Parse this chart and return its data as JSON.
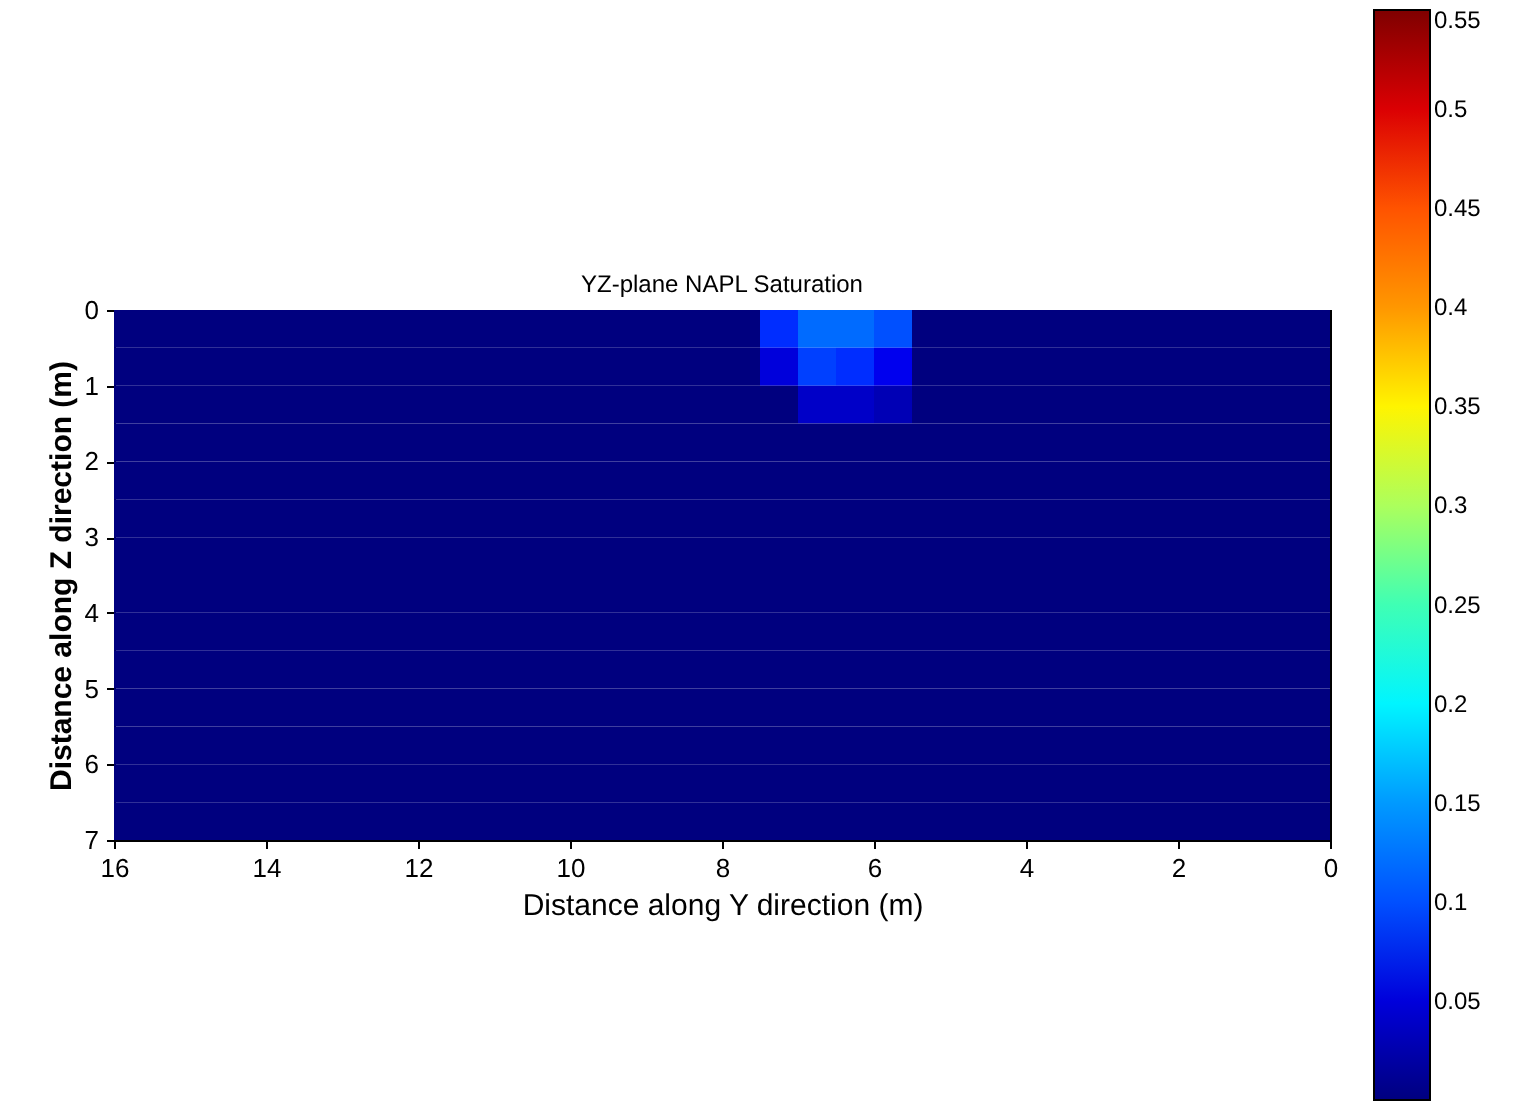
{
  "chart_data": {
    "type": "heatmap",
    "title": "YZ-plane NAPL Saturation",
    "xlabel": "Distance along Y direction (m)",
    "ylabel": "Distance along Z direction (m)",
    "xlim": [
      16,
      0
    ],
    "xticks": [
      16,
      14,
      12,
      10,
      8,
      6,
      4,
      2,
      0
    ],
    "ylim": [
      7,
      0
    ],
    "yticks": [
      0,
      1,
      2,
      3,
      4,
      5,
      6,
      7
    ],
    "clim": [
      0,
      0.55
    ],
    "cticks": [
      0.05,
      0.1,
      0.15,
      0.2,
      0.25,
      0.3,
      0.35,
      0.4,
      0.45,
      0.5,
      0.55
    ],
    "cells": [
      [
        0,
        0,
        0,
        0,
        0,
        0,
        0,
        0,
        0,
        0,
        0,
        0,
        0,
        0,
        0,
        0,
        0,
        0.08,
        0.12,
        0.12,
        0.1,
        0,
        0,
        0,
        0,
        0,
        0,
        0,
        0,
        0,
        0,
        0
      ],
      [
        0,
        0,
        0,
        0,
        0,
        0,
        0,
        0,
        0,
        0,
        0,
        0,
        0,
        0,
        0,
        0,
        0,
        0.05,
        0.09,
        0.08,
        0.06,
        0,
        0,
        0,
        0,
        0,
        0,
        0,
        0,
        0,
        0,
        0
      ],
      [
        0,
        0,
        0,
        0,
        0,
        0,
        0,
        0,
        0,
        0,
        0,
        0,
        0,
        0,
        0,
        0,
        0,
        0,
        0.04,
        0.04,
        0.03,
        0,
        0,
        0,
        0,
        0,
        0,
        0,
        0,
        0,
        0,
        0
      ],
      [
        0,
        0,
        0,
        0,
        0,
        0,
        0,
        0,
        0,
        0,
        0,
        0,
        0,
        0,
        0,
        0,
        0,
        0,
        0,
        0,
        0,
        0,
        0,
        0,
        0,
        0,
        0,
        0,
        0,
        0,
        0,
        0
      ],
      [
        0,
        0,
        0,
        0,
        0,
        0,
        0,
        0,
        0,
        0,
        0,
        0,
        0,
        0,
        0,
        0,
        0,
        0,
        0,
        0,
        0,
        0,
        0,
        0,
        0,
        0,
        0,
        0,
        0,
        0,
        0,
        0
      ],
      [
        0,
        0,
        0,
        0,
        0,
        0,
        0,
        0,
        0,
        0,
        0,
        0,
        0,
        0,
        0,
        0,
        0,
        0,
        0,
        0,
        0,
        0,
        0,
        0,
        0,
        0,
        0,
        0,
        0,
        0,
        0,
        0
      ],
      [
        0,
        0,
        0,
        0,
        0,
        0,
        0,
        0,
        0,
        0,
        0,
        0,
        0,
        0,
        0,
        0,
        0,
        0,
        0,
        0,
        0,
        0,
        0,
        0,
        0,
        0,
        0,
        0,
        0,
        0,
        0,
        0
      ],
      [
        0,
        0,
        0,
        0,
        0,
        0,
        0,
        0,
        0,
        0,
        0,
        0,
        0,
        0,
        0,
        0,
        0,
        0,
        0,
        0,
        0,
        0,
        0,
        0,
        0,
        0,
        0,
        0,
        0,
        0,
        0,
        0
      ],
      [
        0,
        0,
        0,
        0,
        0,
        0,
        0,
        0,
        0,
        0,
        0,
        0,
        0,
        0,
        0,
        0,
        0,
        0,
        0,
        0,
        0,
        0,
        0,
        0,
        0,
        0,
        0,
        0,
        0,
        0,
        0,
        0
      ],
      [
        0,
        0,
        0,
        0,
        0,
        0,
        0,
        0,
        0,
        0,
        0,
        0,
        0,
        0,
        0,
        0,
        0,
        0,
        0,
        0,
        0,
        0,
        0,
        0,
        0,
        0,
        0,
        0,
        0,
        0,
        0,
        0
      ],
      [
        0,
        0,
        0,
        0,
        0,
        0,
        0,
        0,
        0,
        0,
        0,
        0,
        0,
        0,
        0,
        0,
        0,
        0,
        0,
        0,
        0,
        0,
        0,
        0,
        0,
        0,
        0,
        0,
        0,
        0,
        0,
        0
      ],
      [
        0,
        0,
        0,
        0,
        0,
        0,
        0,
        0,
        0,
        0,
        0,
        0,
        0,
        0,
        0,
        0,
        0,
        0,
        0,
        0,
        0,
        0,
        0,
        0,
        0,
        0,
        0,
        0,
        0,
        0,
        0,
        0
      ],
      [
        0,
        0,
        0,
        0,
        0,
        0,
        0,
        0,
        0,
        0,
        0,
        0,
        0,
        0,
        0,
        0,
        0,
        0,
        0,
        0,
        0,
        0,
        0,
        0,
        0,
        0,
        0,
        0,
        0,
        0,
        0,
        0
      ],
      [
        0,
        0,
        0,
        0,
        0,
        0,
        0,
        0,
        0,
        0,
        0,
        0,
        0,
        0,
        0,
        0,
        0,
        0,
        0,
        0,
        0,
        0,
        0,
        0,
        0,
        0,
        0,
        0,
        0,
        0,
        0,
        0
      ]
    ]
  }
}
